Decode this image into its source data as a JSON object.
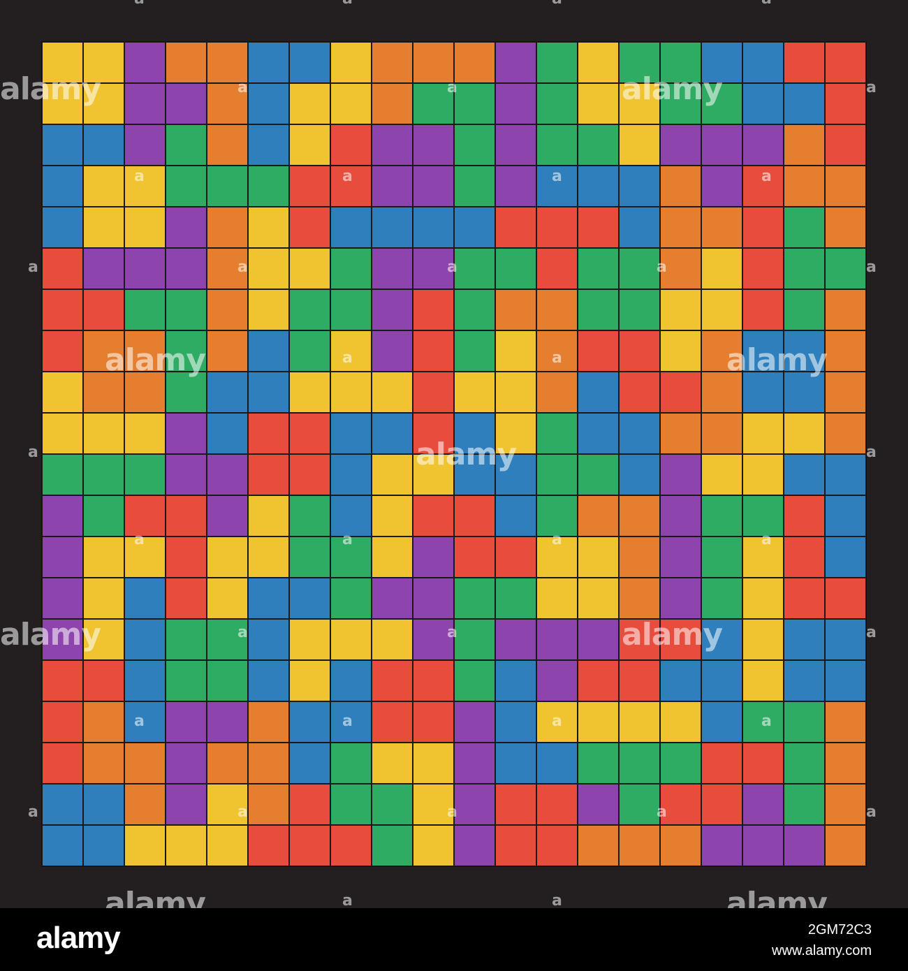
{
  "palette": {
    "Y": "#f0c330",
    "P": "#8e44ad",
    "O": "#e67e30",
    "B": "#2e7fbb",
    "G": "#2fac63",
    "R": "#e74c3c"
  },
  "board": {
    "rows": [
      "YYPOOBBYOOOPGYGGBBRR",
      "YYPPOBYYOGGPGYYGGBBR",
      "BBPGOBYRPPGPGGYPPPOR",
      "BYYGGGRRPPGPBBBOPROO",
      "BYYPOYRBBBBRRRBOORGO",
      "RPPPOYYGPPGGRGGOYRGG",
      "RRGGOYGGPRGOOGGYYRGO",
      "ROOGOBGYPRGYORRYOBBO",
      "YOOGBBYYYRYYOBRROBBO",
      "YYYPBRRBBRBYGBBOOYYO",
      "GGGPPRRBYYBBGGBPYYBB",
      "PGRRPYGBYRRBGOOPGGRB",
      "PYYRYYGGYPRRYYOPGYRB",
      "PYBRYBBGPPGGYYOPGYRR",
      "PYBGGBYYYPGPPPRRBYBB",
      "RRBGGBYBRRGBPRRBBYBB",
      "ROBPPOBBRRPBYYYYBGGO",
      "ROOPOOBGYYPBBGGGRRGO",
      "BBOPYORGGYPRRPGRRPGO",
      "BBYYYRRRGYPRROOOPPPO"
    ]
  },
  "watermark": {
    "brand": "alamy",
    "mark": "a"
  },
  "footer": {
    "logo": "alamy",
    "image_id": "2GM72C3",
    "url": "www.alamy.com"
  }
}
